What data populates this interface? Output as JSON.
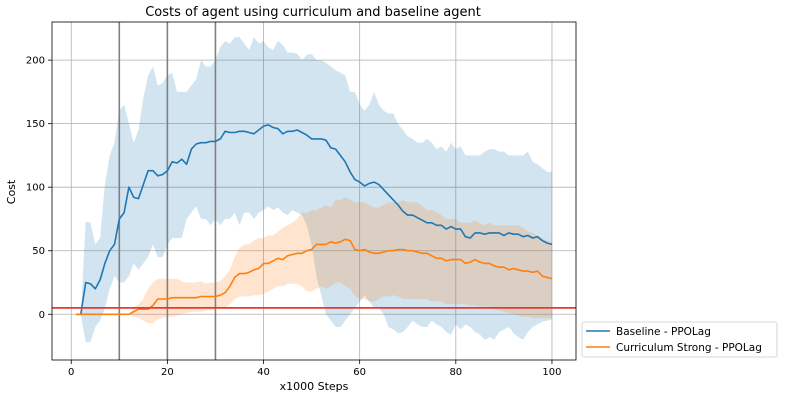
{
  "chart_data": {
    "type": "line",
    "title": "Costs of agent using curriculum and baseline agent",
    "xlabel": "x1000 Steps",
    "ylabel": "Cost",
    "xlim": [
      -4,
      105
    ],
    "ylim": [
      -36,
      230
    ],
    "xticks": [
      0,
      20,
      40,
      60,
      80,
      100
    ],
    "yticks": [
      0,
      50,
      100,
      150,
      200
    ],
    "xtick_labels": [
      "0",
      "20",
      "40",
      "60",
      "80",
      "100"
    ],
    "ytick_labels": [
      "0",
      "50",
      "100",
      "150",
      "200"
    ],
    "grid": true,
    "legend_position": "outside-bottom-right",
    "vertical_lines": [
      10,
      20,
      30
    ],
    "threshold": 5,
    "series": [
      {
        "name": "Baseline - PPOLag",
        "color": "#1f77b4",
        "x": [
          1,
          2,
          3,
          4,
          5,
          6,
          7,
          8,
          9,
          10,
          11,
          12,
          13,
          14,
          15,
          16,
          17,
          18,
          19,
          20,
          21,
          22,
          23,
          24,
          25,
          26,
          27,
          28,
          29,
          30,
          31,
          32,
          33,
          34,
          35,
          36,
          37,
          38,
          39,
          40,
          41,
          42,
          43,
          44,
          45,
          46,
          47,
          48,
          49,
          50,
          51,
          52,
          53,
          54,
          55,
          56,
          57,
          58,
          59,
          60,
          61,
          62,
          63,
          64,
          65,
          66,
          67,
          68,
          69,
          70,
          71,
          72,
          73,
          74,
          75,
          76,
          77,
          78,
          79,
          80,
          81,
          82,
          83,
          84,
          85,
          86,
          87,
          88,
          89,
          90,
          91,
          92,
          93,
          94,
          95,
          96,
          97,
          98,
          99,
          100
        ],
        "values": [
          0,
          0,
          25,
          24,
          20,
          27,
          40,
          50,
          55,
          75,
          80,
          100,
          92,
          91,
          102,
          113,
          113,
          109,
          110,
          113,
          120,
          119,
          122,
          118,
          130,
          134,
          135,
          135,
          136,
          136,
          138,
          144,
          143,
          143,
          144,
          144,
          143,
          142,
          145,
          148,
          149,
          147,
          146,
          142,
          144,
          144,
          145,
          143,
          141,
          138,
          138,
          138,
          137,
          131,
          130,
          125,
          120,
          112,
          106,
          104,
          101,
          103,
          104,
          102,
          98,
          94,
          90,
          86,
          81,
          78,
          78,
          76,
          74,
          72,
          72,
          70,
          70,
          67,
          69,
          67,
          67,
          61,
          60,
          64,
          64,
          63,
          64,
          64,
          64,
          62,
          64,
          63,
          63,
          61,
          62,
          60,
          61,
          58,
          56,
          55
        ],
        "band_upper": [
          0,
          0,
          73,
          72,
          55,
          60,
          102,
          125,
          135,
          160,
          165,
          150,
          135,
          145,
          170,
          188,
          195,
          180,
          182,
          188,
          190,
          175,
          175,
          175,
          180,
          185,
          200,
          195,
          195,
          200,
          210,
          215,
          213,
          218,
          218,
          213,
          208,
          218,
          213,
          215,
          210,
          208,
          215,
          212,
          206,
          206,
          205,
          200,
          204,
          205,
          200,
          200,
          198,
          195,
          192,
          190,
          188,
          175,
          175,
          165,
          160,
          165,
          175,
          165,
          160,
          158,
          158,
          150,
          145,
          140,
          138,
          135,
          135,
          138,
          135,
          130,
          132,
          128,
          135,
          130,
          132,
          125,
          125,
          125,
          125,
          128,
          130,
          130,
          128,
          128,
          125,
          125,
          125,
          125,
          128,
          120,
          118,
          115,
          112,
          112
        ],
        "band_lower": [
          0,
          0,
          -22,
          -22,
          -10,
          -5,
          5,
          20,
          30,
          25,
          25,
          30,
          40,
          35,
          40,
          45,
          55,
          45,
          45,
          55,
          60,
          60,
          60,
          75,
          80,
          85,
          75,
          75,
          70,
          75,
          70,
          75,
          75,
          80,
          70,
          80,
          80,
          75,
          80,
          82,
          85,
          82,
          84,
          80,
          78,
          82,
          80,
          78,
          70,
          55,
          30,
          15,
          0,
          -5,
          -10,
          -10,
          -5,
          0,
          5,
          10,
          15,
          10,
          5,
          5,
          0,
          -10,
          -12,
          -15,
          -14,
          -10,
          -5,
          -8,
          -10,
          -10,
          -5,
          -8,
          -10,
          -14,
          -16,
          -8,
          -12,
          -8,
          -10,
          -14,
          -16,
          -20,
          -18,
          -20,
          -14,
          -12,
          -10,
          -15,
          -18,
          -20,
          -14,
          -10,
          -8,
          -6,
          -5,
          -4
        ]
      },
      {
        "name": "Curriculum Strong - PPOLag",
        "color": "#ff7f0e",
        "x": [
          1,
          2,
          3,
          4,
          5,
          6,
          7,
          8,
          9,
          10,
          11,
          12,
          13,
          14,
          15,
          16,
          17,
          18,
          19,
          20,
          21,
          22,
          23,
          24,
          25,
          26,
          27,
          28,
          29,
          30,
          31,
          32,
          33,
          34,
          35,
          36,
          37,
          38,
          39,
          40,
          41,
          42,
          43,
          44,
          45,
          46,
          47,
          48,
          49,
          50,
          51,
          52,
          53,
          54,
          55,
          56,
          57,
          58,
          59,
          60,
          61,
          62,
          63,
          64,
          65,
          66,
          67,
          68,
          69,
          70,
          71,
          72,
          73,
          74,
          75,
          76,
          77,
          78,
          79,
          80,
          81,
          82,
          83,
          84,
          85,
          86,
          87,
          88,
          89,
          90,
          91,
          92,
          93,
          94,
          95,
          96,
          97,
          98,
          99,
          100
        ],
        "values": [
          0,
          0,
          0,
          0,
          0,
          0,
          0,
          0,
          0,
          0,
          0,
          0,
          2,
          4,
          4,
          4,
          7,
          12,
          12,
          12,
          13,
          13,
          13,
          13,
          13,
          13,
          14,
          14,
          14,
          14,
          15,
          17,
          22,
          29,
          32,
          32,
          33,
          35,
          36,
          40,
          40,
          42,
          44,
          43,
          46,
          47,
          48,
          48,
          50,
          51,
          55,
          55,
          55,
          57,
          56,
          57,
          59,
          58,
          51,
          50,
          51,
          49,
          48,
          48,
          49,
          50,
          50,
          51,
          51,
          50,
          50,
          49,
          48,
          48,
          46,
          44,
          44,
          42,
          43,
          43,
          43,
          40,
          41,
          43,
          41,
          40,
          40,
          38,
          37,
          37,
          35,
          36,
          35,
          34,
          34,
          33,
          34,
          30,
          29,
          28
        ],
        "band_upper": [
          0,
          0,
          0,
          0,
          0,
          0,
          0,
          0,
          0,
          0,
          0,
          0,
          5,
          8,
          12,
          20,
          25,
          28,
          28,
          28,
          28,
          28,
          26,
          25,
          25,
          25,
          26,
          24,
          25,
          25,
          26,
          30,
          35,
          45,
          52,
          55,
          55,
          58,
          60,
          60,
          62,
          62,
          65,
          68,
          70,
          72,
          75,
          80,
          80,
          82,
          82,
          84,
          86,
          84,
          90,
          90,
          92,
          90,
          88,
          88,
          88,
          86,
          84,
          84,
          86,
          88,
          88,
          88,
          90,
          88,
          88,
          88,
          85,
          82,
          82,
          80,
          78,
          75,
          75,
          75,
          72,
          72,
          72,
          74,
          72,
          70,
          72,
          70,
          70,
          70,
          70,
          70,
          70,
          68,
          65,
          64,
          62,
          60,
          58,
          57
        ],
        "band_lower": [
          0,
          0,
          0,
          0,
          0,
          0,
          0,
          0,
          0,
          0,
          0,
          0,
          -2,
          -3,
          -5,
          -7,
          -7,
          -4,
          -3,
          -2,
          -2,
          -1,
          0,
          1,
          2,
          2,
          2,
          3,
          3,
          4,
          5,
          5,
          8,
          12,
          14,
          14,
          14,
          15,
          15,
          16,
          18,
          20,
          22,
          22,
          24,
          24,
          24,
          22,
          18,
          18,
          20,
          22,
          20,
          22,
          25,
          25,
          22,
          20,
          14,
          12,
          12,
          10,
          10,
          12,
          14,
          14,
          15,
          14,
          12,
          12,
          12,
          12,
          12,
          12,
          10,
          10,
          10,
          8,
          8,
          8,
          8,
          8,
          7,
          7,
          6,
          6,
          6,
          4,
          3,
          2,
          1,
          0,
          -1,
          -2,
          -2,
          -3,
          -3,
          -3,
          -3,
          -3
        ]
      }
    ]
  }
}
